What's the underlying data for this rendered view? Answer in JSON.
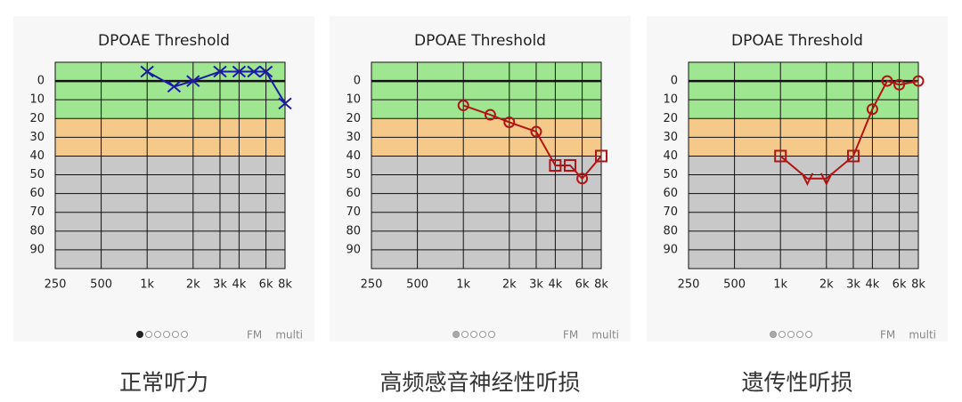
{
  "chart_data": [
    {
      "type": "line",
      "title": "DPOAE Threshold",
      "caption": "正常听力",
      "footer": [
        "FM",
        "multi"
      ],
      "active_dot": 0,
      "dots": 6,
      "log_x": true,
      "y_inverted": true,
      "xlim": [
        250,
        8000
      ],
      "ylim": [
        -10,
        100
      ],
      "xticks": [
        250,
        500,
        {
          "value": 1000,
          "label": "1k"
        },
        {
          "value": 2000,
          "label": "2k"
        },
        {
          "value": 3000,
          "label": "3k"
        },
        {
          "value": 4000,
          "label": "4k"
        },
        {
          "value": 6000,
          "label": "6k"
        },
        {
          "value": 8000,
          "label": "8k"
        }
      ],
      "yticks": [
        0,
        10,
        20,
        30,
        40,
        50,
        60,
        70,
        80,
        90
      ],
      "bands": [
        {
          "from": -10,
          "to": 20,
          "color": "#9ee68f"
        },
        {
          "from": 20,
          "to": 40,
          "color": "#f5c98a"
        },
        {
          "from": 40,
          "to": 100,
          "color": "#c8c8c8"
        }
      ],
      "x": [
        1000,
        1500,
        2000,
        3000,
        4000,
        5000,
        6000,
        8000
      ],
      "series": [
        {
          "color": "#1a1aa6",
          "markers": [
            "x",
            "x",
            "x",
            "x",
            "x",
            "x",
            "x",
            "x"
          ],
          "values": [
            -5,
            3,
            0,
            -5,
            -5,
            -5,
            -5,
            12
          ]
        }
      ]
    },
    {
      "type": "line",
      "title": "DPOAE Threshold",
      "caption": "高频感音神经性听损",
      "footer": [
        "FM",
        "multi"
      ],
      "active_dot": null,
      "dots": 5,
      "log_x": true,
      "y_inverted": true,
      "xlim": [
        250,
        8000
      ],
      "ylim": [
        -10,
        100
      ],
      "xticks": [
        250,
        500,
        {
          "value": 1000,
          "label": "1k"
        },
        {
          "value": 2000,
          "label": "2k"
        },
        {
          "value": 3000,
          "label": "3k"
        },
        {
          "value": 4000,
          "label": "4k"
        },
        {
          "value": 6000,
          "label": "6k"
        },
        {
          "value": 8000,
          "label": "8k"
        }
      ],
      "yticks": [
        0,
        10,
        20,
        30,
        40,
        50,
        60,
        70,
        80,
        90
      ],
      "bands": [
        {
          "from": -10,
          "to": 20,
          "color": "#9ee68f"
        },
        {
          "from": 20,
          "to": 40,
          "color": "#f5c98a"
        },
        {
          "from": 40,
          "to": 100,
          "color": "#c8c8c8"
        }
      ],
      "x": [
        1000,
        1500,
        2000,
        3000,
        4000,
        5000,
        6000,
        8000
      ],
      "series": [
        {
          "color": "#b01414",
          "markers": [
            "o",
            "o",
            "o",
            "o",
            "s",
            "s",
            "o",
            "s"
          ],
          "values": [
            13,
            18,
            22,
            27,
            45,
            45,
            52,
            40
          ]
        }
      ]
    },
    {
      "type": "line",
      "title": "DPOAE Threshold",
      "caption": "遗传性听损",
      "footer": [
        "FM",
        "multi"
      ],
      "active_dot": null,
      "dots": 5,
      "log_x": true,
      "y_inverted": true,
      "xlim": [
        250,
        8000
      ],
      "ylim": [
        -10,
        100
      ],
      "xticks": [
        250,
        500,
        {
          "value": 1000,
          "label": "1k"
        },
        {
          "value": 2000,
          "label": "2k"
        },
        {
          "value": 3000,
          "label": "3k"
        },
        {
          "value": 4000,
          "label": "4k"
        },
        {
          "value": 6000,
          "label": "6k"
        },
        {
          "value": 8000,
          "label": "8k"
        }
      ],
      "yticks": [
        0,
        10,
        20,
        30,
        40,
        50,
        60,
        70,
        80,
        90
      ],
      "bands": [
        {
          "from": -10,
          "to": 20,
          "color": "#9ee68f"
        },
        {
          "from": 20,
          "to": 40,
          "color": "#f5c98a"
        },
        {
          "from": 40,
          "to": 100,
          "color": "#c8c8c8"
        }
      ],
      "x": [
        1000,
        1500,
        2000,
        3000,
        4000,
        5000,
        6000,
        8000
      ],
      "series": [
        {
          "color": "#b01414",
          "markers": [
            "s",
            "v",
            "v",
            "s",
            "o",
            "o",
            "o",
            "o"
          ],
          "values": [
            40,
            52,
            52,
            40,
            15,
            0,
            2,
            0
          ]
        }
      ]
    }
  ]
}
